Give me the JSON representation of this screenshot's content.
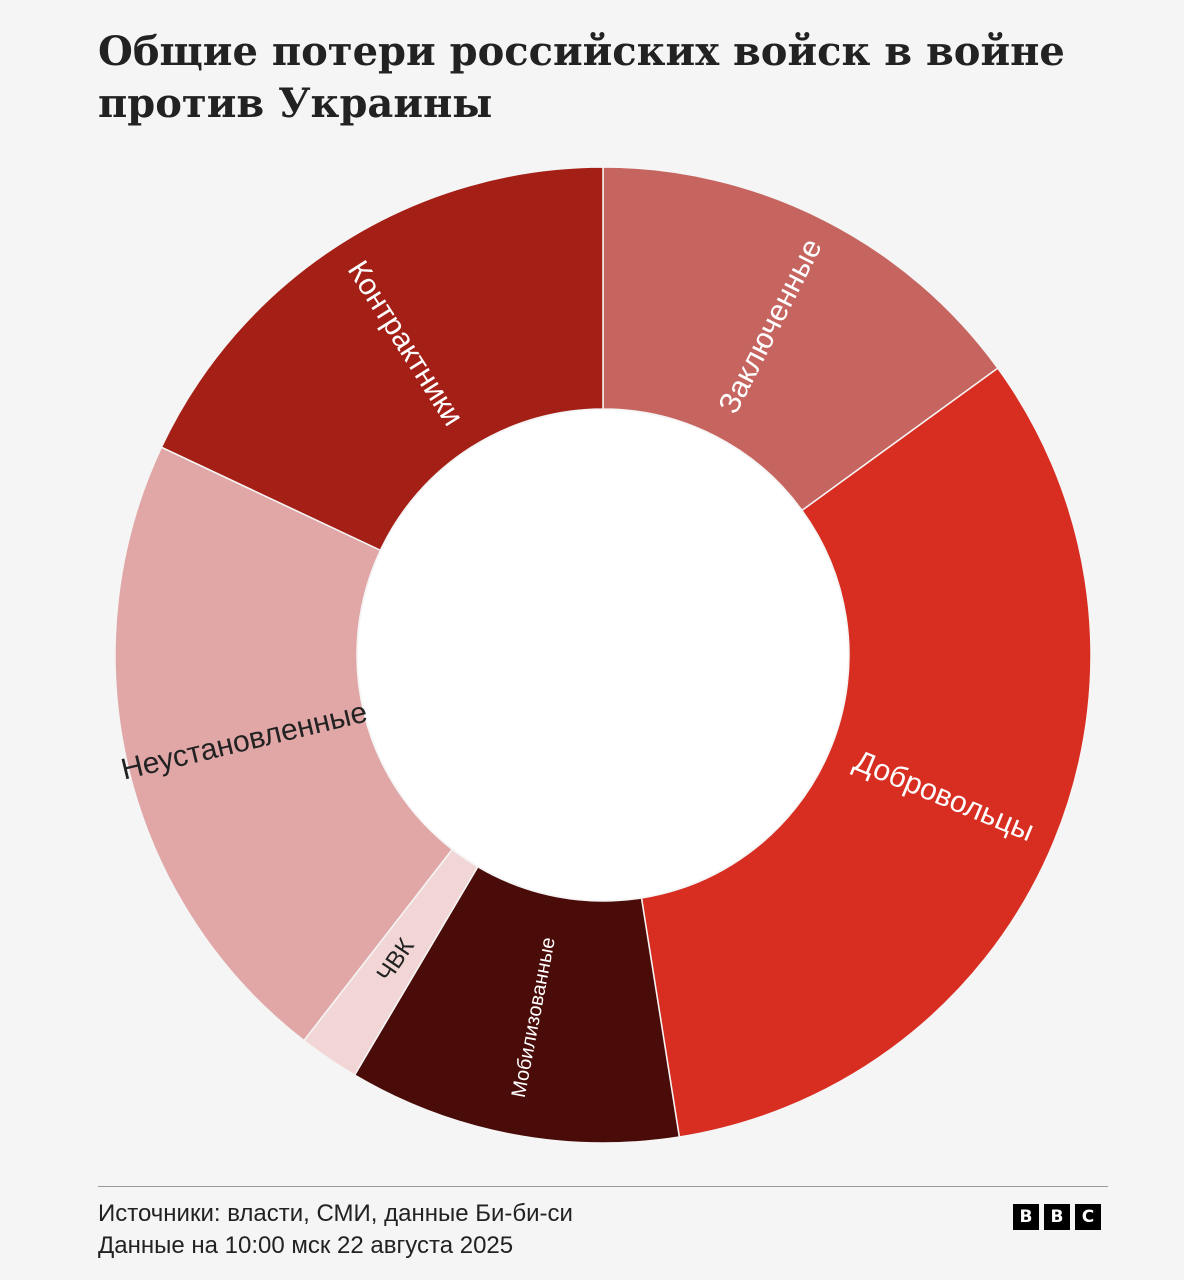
{
  "title": "Общие потери российских войск в войне против Украины",
  "chart_data": {
    "type": "pie",
    "variant": "donut",
    "title": "Общие потери российских войск в войне против Украины",
    "slices": [
      {
        "label": "Заключенные",
        "value": 15.0,
        "color": "#c66560"
      },
      {
        "label": "Добровольцы",
        "value": 32.5,
        "color": "#d82d21"
      },
      {
        "label": "Мобилизованные",
        "value": 11.0,
        "color": "#4a0c09"
      },
      {
        "label": "ЧВК",
        "value": 2.0,
        "color": "#f2d6d6"
      },
      {
        "label": "Неустановленные",
        "value": 21.5,
        "color": "#e1a7a7"
      },
      {
        "label": "Контрактники",
        "value": 18.0,
        "color": "#a41f16"
      }
    ]
  },
  "footer": {
    "source": "Источники: власти, СМИ, данные Би-би-си",
    "date": "Данные на 10:00 мск 22 августа 2025",
    "logo_letters": [
      "B",
      "B",
      "C"
    ]
  }
}
